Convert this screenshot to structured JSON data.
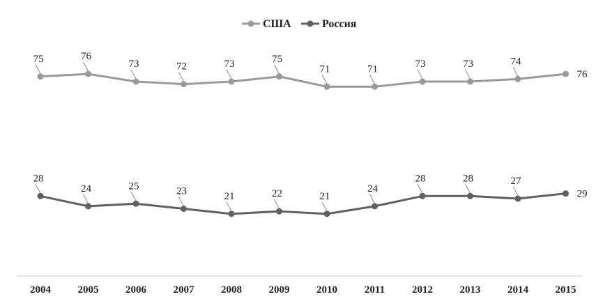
{
  "chart_data": {
    "type": "line",
    "title": "",
    "xlabel": "",
    "ylabel": "",
    "x": [
      "2004",
      "2005",
      "2006",
      "2007",
      "2008",
      "2009",
      "2010",
      "2011",
      "2012",
      "2013",
      "2014",
      "2015"
    ],
    "series": [
      {
        "name": "США",
        "color": "#9a9a9a",
        "values": [
          75,
          76,
          73,
          72,
          73,
          75,
          71,
          71,
          73,
          73,
          74,
          76
        ]
      },
      {
        "name": "Россия",
        "color": "#606060",
        "values": [
          28,
          24,
          25,
          23,
          21,
          22,
          21,
          24,
          28,
          28,
          27,
          29
        ]
      }
    ],
    "ylim": [
      0,
      100
    ],
    "grid": false,
    "legend_position": "top-center"
  }
}
